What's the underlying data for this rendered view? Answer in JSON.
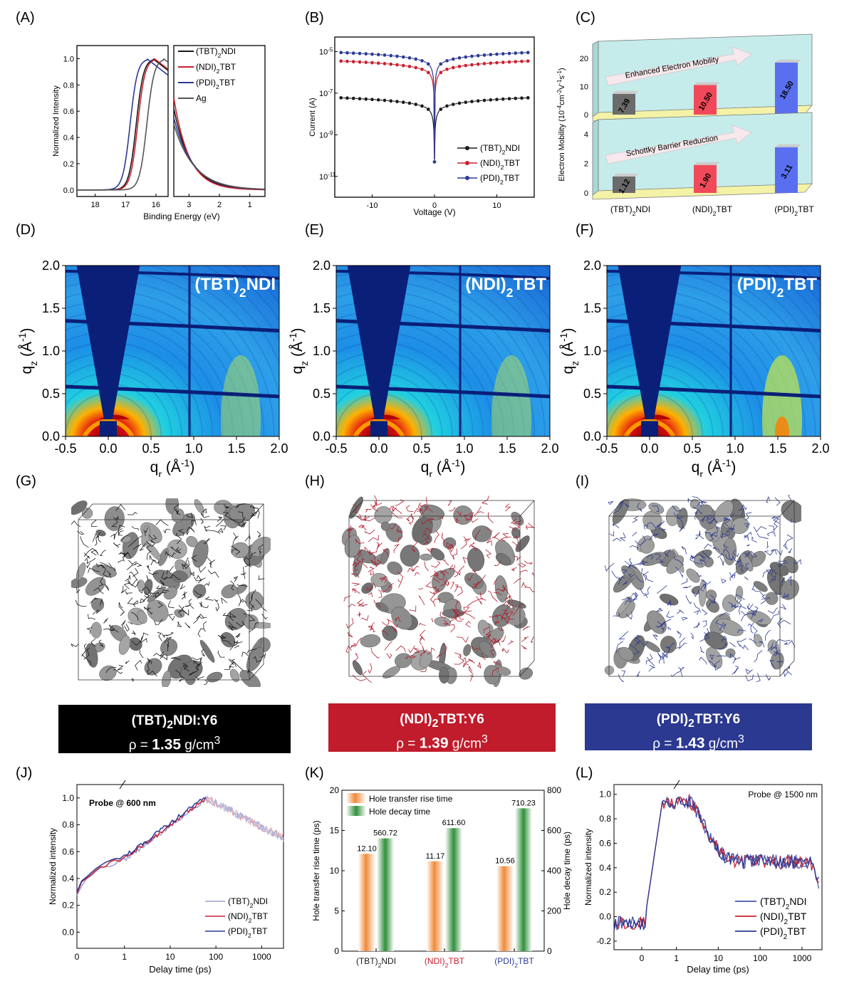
{
  "panels": {
    "A": "(A)",
    "B": "(B)",
    "C": "(C)",
    "D": "(D)",
    "E": "(E)",
    "F": "(F)",
    "G": "(G)",
    "H": "(H)",
    "I": "(I)",
    "J": "(J)",
    "K": "(K)",
    "L": "(L)"
  },
  "colors": {
    "tbt": "#1a1a1a",
    "ndi": "#c8202f",
    "pdi": "#2c3a95",
    "ag": "#555555",
    "orange": "#f08a3a",
    "green": "#2f8f3a",
    "box_tbt": "#000000",
    "box_ndi": "#c01c2c",
    "box_pdi": "#2b3990"
  },
  "chart_data": [
    {
      "id": "A",
      "type": "line",
      "ylabel": "Normalized Intensity",
      "xlabel": "Binding Energy (eV)",
      "ylim": [
        -0.05,
        1.1
      ],
      "yticks": [
        "0.0",
        "0.2",
        "0.4",
        "0.6",
        "0.8",
        "1.0"
      ],
      "xticks_left": [
        "18",
        "17",
        "16"
      ],
      "xticks_right": [
        "3",
        "2",
        "1"
      ],
      "series": [
        {
          "name": "(TBT)",
          "sub": "2",
          "suffix": "NDI",
          "color_key": "tbt",
          "onset": 16.65
        },
        {
          "name": "(NDI)",
          "sub": "2",
          "suffix": "TBT",
          "color_key": "ndi",
          "onset": 16.6
        },
        {
          "name": "(PDI)",
          "sub": "2",
          "suffix": "TBT",
          "color_key": "pdi",
          "onset": 16.85
        },
        {
          "name": "Ag",
          "sub": "",
          "suffix": "",
          "color_key": "ag",
          "onset": 16.3
        }
      ]
    },
    {
      "id": "B",
      "type": "scatter",
      "ylabel": "Current (A)",
      "xlabel": "Voltage (V)",
      "xlim": [
        -16,
        16
      ],
      "ylog": true,
      "yticks": [
        {
          "base": "10",
          "exp": "-5"
        },
        {
          "base": "10",
          "exp": "-7"
        },
        {
          "base": "10",
          "exp": "-9"
        },
        {
          "base": "10",
          "exp": "-11"
        }
      ],
      "xticks": [
        "-10",
        "0",
        "10"
      ],
      "series": [
        {
          "name": "(TBT)",
          "sub": "2",
          "suffix": "NDI",
          "color_key": "tbt",
          "peak": 6e-08
        },
        {
          "name": "(NDI)",
          "sub": "2",
          "suffix": "TBT",
          "color_key": "ndi",
          "peak": 3.5e-06
        },
        {
          "name": "(PDI)",
          "sub": "2",
          "suffix": "TBT",
          "color_key": "pdi",
          "peak": 9e-06
        }
      ]
    },
    {
      "id": "C",
      "type": "bar",
      "ylabel": "Electron Mobility (10",
      "ylabel_exp": "-4",
      "ylabel_rest": "cm",
      "ylabel_tail": "V",
      "categories": [
        {
          "name": "(TBT)",
          "sub": "2",
          "suffix": "NDI"
        },
        {
          "name": "(NDI)",
          "sub": "2",
          "suffix": "TBT"
        },
        {
          "name": "(PDI)",
          "sub": "2",
          "suffix": "TBT"
        }
      ],
      "top": {
        "values": [
          7.39,
          10.5,
          18.5
        ],
        "labels": [
          "7.39",
          "10.50",
          "18.50"
        ],
        "arrow": "Enhanced Electron Mobility",
        "yticks": [
          "0",
          "10",
          "20"
        ],
        "ylim": [
          0,
          24
        ]
      },
      "bottom": {
        "values": [
          1.12,
          1.9,
          3.11
        ],
        "labels": [
          "1.12",
          "1.90",
          "3.11"
        ],
        "arrow": "Schottky Barrier Reduction",
        "yticks": [
          "0",
          "2",
          "4"
        ],
        "ylim": [
          0,
          4.6
        ]
      }
    },
    {
      "id": "GIWAXS",
      "type": "heatmap",
      "xlabel": "q",
      "xlabel_sub": "r",
      "xlabel_unit": " (Å",
      "xlabel_exp": "-1",
      "xlabel_close": ")",
      "ylabel": "q",
      "ylabel_sub": "z",
      "ylabel_unit": " (Å",
      "ylabel_exp": "-1",
      "ylabel_close": ")",
      "xticks": [
        "-0.5",
        "0.0",
        "0.5",
        "1.0",
        "1.5",
        "2.0"
      ],
      "yticks": [
        "0.0",
        "0.5",
        "1.0",
        "1.5",
        "2.0"
      ],
      "maps": [
        {
          "title": "(TBT)",
          "sub": "2",
          "suffix": "NDI"
        },
        {
          "title": "(NDI)",
          "sub": "2",
          "suffix": "TBT"
        },
        {
          "title": "(PDI)",
          "sub": "2",
          "suffix": "TBT"
        }
      ]
    },
    {
      "id": "J",
      "type": "line",
      "ylabel": "Normalized intensity",
      "xlabel": "Delay time (ps)",
      "annotation": "Probe @ 600 nm",
      "yticks": [
        "0.0",
        "0.2",
        "0.4",
        "0.6",
        "0.8",
        "1.0"
      ],
      "xticks": [
        "0",
        "1",
        "10",
        "100",
        "1000"
      ],
      "series": [
        {
          "name": "(TBT)",
          "sub": "2",
          "suffix": "NDI",
          "color_key": "tbt"
        },
        {
          "name": "(NDI)",
          "sub": "2",
          "suffix": "TBT",
          "color_key": "ndi"
        },
        {
          "name": "(PDI)",
          "sub": "2",
          "suffix": "TBT",
          "color_key": "pdi"
        }
      ]
    },
    {
      "id": "K",
      "type": "bar",
      "ylabel_left": "Hole transfer rise time (ps)",
      "ylabel_right": "Hole decay time (ps)",
      "legend": [
        "Hole transfer rise time",
        "Hole decay time"
      ],
      "yticks_left": [
        "0",
        "5",
        "10",
        "15",
        "20"
      ],
      "ylim_left": [
        0,
        20
      ],
      "yticks_right": [
        "0",
        "200",
        "400",
        "600",
        "800"
      ],
      "ylim_right": [
        0,
        800
      ],
      "categories": [
        {
          "name": "(TBT)",
          "sub": "2",
          "suffix": "NDI",
          "color_key": "tbt"
        },
        {
          "name": "(NDI)",
          "sub": "2",
          "suffix": "TBT",
          "color_key": "ndi"
        },
        {
          "name": "(PDI)",
          "sub": "2",
          "suffix": "TBT",
          "color_key": "pdi"
        }
      ],
      "rise": [
        12.1,
        11.17,
        10.56
      ],
      "rise_labels": [
        "12.10",
        "11.17",
        "10.56"
      ],
      "decay": [
        560.72,
        611.6,
        710.23
      ],
      "decay_labels": [
        "560.72",
        "611.60",
        "710.23"
      ]
    },
    {
      "id": "L",
      "type": "line",
      "ylabel": "Normalized intensity",
      "xlabel": "Delay time (ps)",
      "annotation": "Probe @ 1500 nm",
      "yticks": [
        "-0.2",
        "0.0",
        "0.2",
        "0.4",
        "0.6",
        "0.8",
        "1.0"
      ],
      "xticks": [
        "0",
        "1",
        "10",
        "100",
        "1000"
      ],
      "series": [
        {
          "name": "(TBT)",
          "sub": "2",
          "suffix": "NDI",
          "color_key": "pdi"
        },
        {
          "name": "(NDI)",
          "sub": "2",
          "suffix": "TBT",
          "color_key": "ndi"
        },
        {
          "name": "(PDI)",
          "sub": "2",
          "suffix": "TBT",
          "color_key": "pdi"
        }
      ]
    }
  ],
  "density_boxes": [
    {
      "title": "(TBT)",
      "sub": "2",
      "suffix": "NDI:Y6",
      "rho": "ρ = ",
      "value": "1.35",
      "unit": " g/cm",
      "exp": "3",
      "color_key": "box_tbt"
    },
    {
      "title": "(NDI)",
      "sub": "2",
      "suffix": "TBT:Y6",
      "rho": "ρ = ",
      "value": "1.39",
      "unit": " g/cm",
      "exp": "3",
      "color_key": "box_ndi"
    },
    {
      "title": "(PDI)",
      "sub": "2",
      "suffix": "TBT:Y6",
      "rho": "ρ = ",
      "value": "1.43",
      "unit": " g/cm",
      "exp": "3",
      "color_key": "box_pdi"
    }
  ]
}
